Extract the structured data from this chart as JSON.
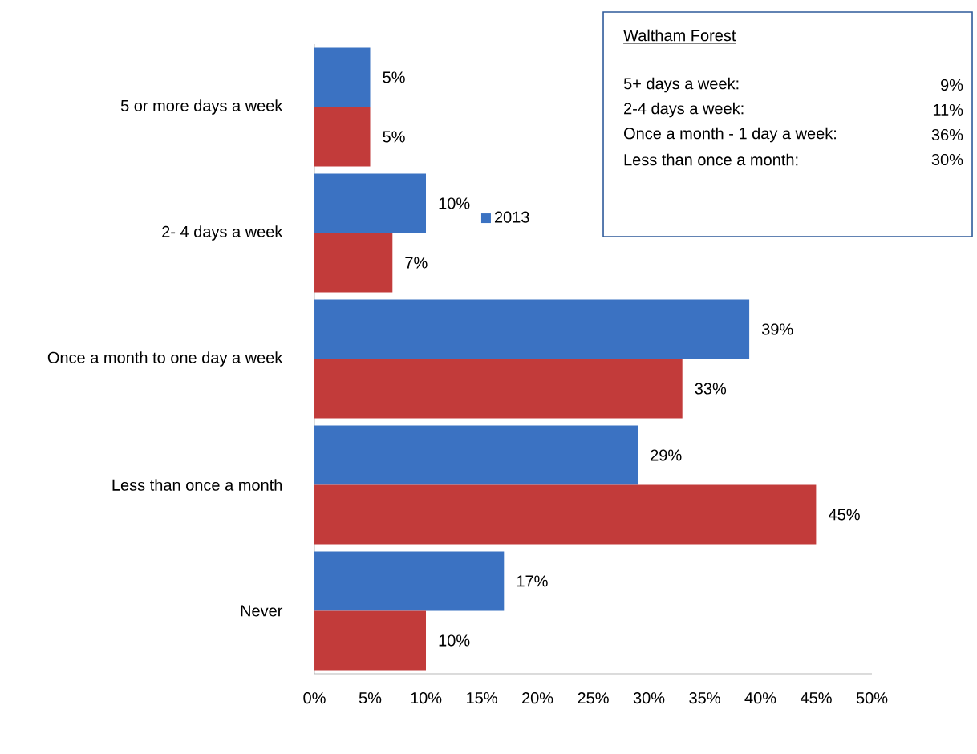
{
  "chart_data": {
    "type": "bar",
    "orientation": "horizontal",
    "categories": [
      "5 or more days a week",
      "2- 4 days a week",
      "Once a month to one day a week",
      "Less than once a month",
      "Never"
    ],
    "series": [
      {
        "name": "2013",
        "color": "#3b72c2",
        "values": [
          5,
          10,
          39,
          29,
          17
        ],
        "value_labels": [
          "5%",
          "10%",
          "39%",
          "29%",
          "17%"
        ]
      },
      {
        "color": "#c23b3a",
        "values": [
          5,
          7,
          33,
          45,
          10
        ],
        "value_labels": [
          "5%",
          "7%",
          "33%",
          "45%",
          "10%"
        ]
      }
    ],
    "xlim": [
      0,
      50
    ],
    "xticks": [
      {
        "value": 0,
        "label": "0%"
      },
      {
        "value": 5,
        "label": "5%"
      },
      {
        "value": 10,
        "label": "10%"
      },
      {
        "value": 15,
        "label": "15%"
      },
      {
        "value": 20,
        "label": "20%"
      },
      {
        "value": 25,
        "label": "25%"
      },
      {
        "value": 30,
        "label": "30%"
      },
      {
        "value": 35,
        "label": "35%"
      },
      {
        "value": 40,
        "label": "40%"
      },
      {
        "value": 45,
        "label": "45%"
      },
      {
        "value": 50,
        "label": "50%"
      }
    ],
    "legend": "top",
    "grid": false,
    "annotations": [
      "Waltham Forest",
      "5+ days a week:",
      "9%",
      "2-4 days a week:",
      "11%",
      "Once a month - 1 day a week:",
      "36%",
      "Less than once a month:",
      "30%"
    ]
  }
}
